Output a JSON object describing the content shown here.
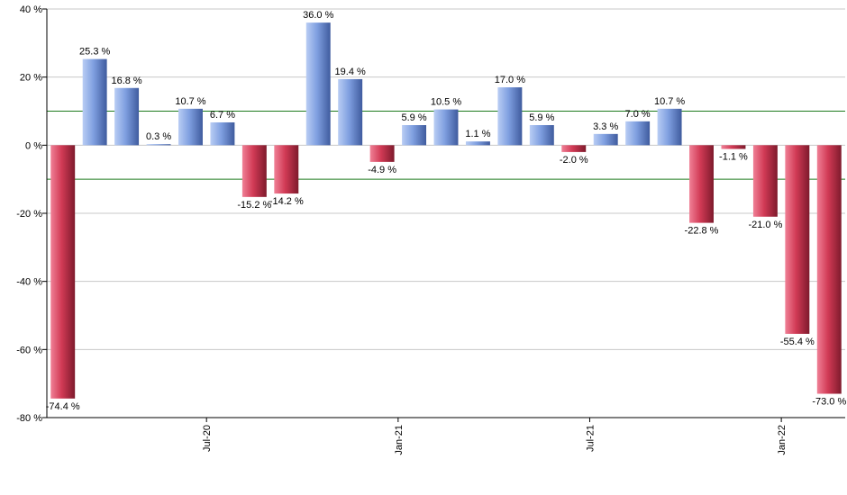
{
  "chart_data": {
    "type": "bar",
    "ylim": [
      -80,
      40
    ],
    "yticks": [
      40,
      20,
      0,
      -20,
      -40,
      -60,
      -80
    ],
    "ytick_suffix": " %",
    "grid": true,
    "reference_lines": [
      10,
      -10
    ],
    "xtick_labels": [
      "Jul-20",
      "Jan-21",
      "Jul-21",
      "Jan-22"
    ],
    "xtick_after_bar": [
      4,
      10,
      16,
      22
    ],
    "values": [
      -74.4,
      25.3,
      16.8,
      0.3,
      10.7,
      6.7,
      -15.2,
      -14.2,
      36.0,
      19.4,
      -4.9,
      5.9,
      10.5,
      1.1,
      17.0,
      5.9,
      -2.0,
      3.3,
      7.0,
      10.7,
      -22.8,
      -1.1,
      -21.0,
      -55.4,
      -73.0
    ],
    "labels": [
      "-74.4 %",
      "25.3 %",
      "16.8 %",
      "0.3 %",
      "10.7 %",
      "6.7 %",
      "-15.2 %",
      "-14.2 %",
      "36.0 %",
      "19.4 %",
      "-4.9 %",
      "5.9 %",
      "10.5 %",
      "1.1 %",
      "17.0 %",
      "5.9 %",
      "-2.0 %",
      "3.3 %",
      "7.0 %",
      "10.7 %",
      "-22.8 %",
      "-1.1 %",
      "-21.0 %",
      "-55.4 %",
      "-73.0 %"
    ],
    "colors": {
      "positive": "#7f9fe0",
      "negative": "#d13a55",
      "reference_line": "#1e7a1e",
      "grid": "#c8c8c8",
      "axis": "#000000"
    }
  }
}
